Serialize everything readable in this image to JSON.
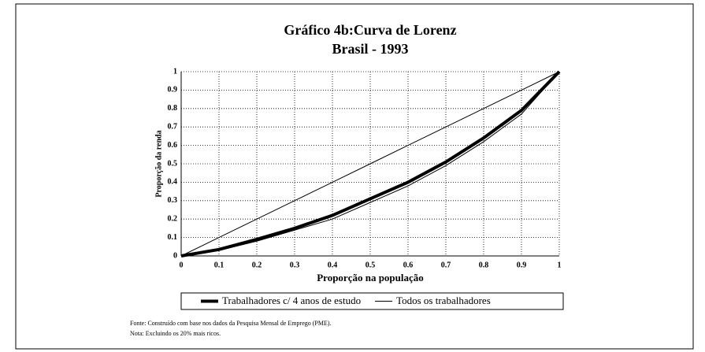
{
  "chart_data": {
    "type": "line",
    "title": "Gráfico 4b:Curva de Lorenz",
    "subtitle": "Brasil  - 1993",
    "x_label": "Proporção na população",
    "y_label": "Proporção da renda",
    "x": [
      0,
      0.1,
      0.2,
      0.3,
      0.4,
      0.5,
      0.6,
      0.7,
      0.8,
      0.9,
      1
    ],
    "series": [
      {
        "color": "#000000",
        "width": 1,
        "values": [
          0,
          0.1,
          0.2,
          0.3,
          0.4,
          0.5,
          0.6,
          0.7,
          0.8,
          0.9,
          1
        ]
      },
      {
        "name": "Trabalhadores c/ 4 anos de estudo",
        "color": "#000000",
        "width": 4,
        "values": [
          0,
          0.035,
          0.09,
          0.15,
          0.22,
          0.31,
          0.4,
          0.51,
          0.64,
          0.79,
          1
        ]
      },
      {
        "name": "Todos os trabalhadores",
        "color": "#000000",
        "width": 1,
        "values": [
          0,
          0.03,
          0.08,
          0.14,
          0.2,
          0.29,
          0.38,
          0.49,
          0.62,
          0.77,
          1
        ]
      }
    ],
    "xlim": [
      0,
      1
    ],
    "ylim": [
      0,
      1
    ],
    "xticks": [
      0,
      0.1,
      0.2,
      0.3,
      0.4,
      0.5,
      0.6,
      0.7,
      0.8,
      0.9,
      1
    ],
    "yticks": [
      0,
      0.1,
      0.2,
      0.3,
      0.4,
      0.5,
      0.6,
      0.7,
      0.8,
      0.9,
      1
    ],
    "grid": true,
    "notes": [
      "Fonte:  Construído com base nos dados da Pesquisa Mensal de Emprego (PME).",
      "Nota:   Excluindo os 20% mais ricos."
    ]
  }
}
